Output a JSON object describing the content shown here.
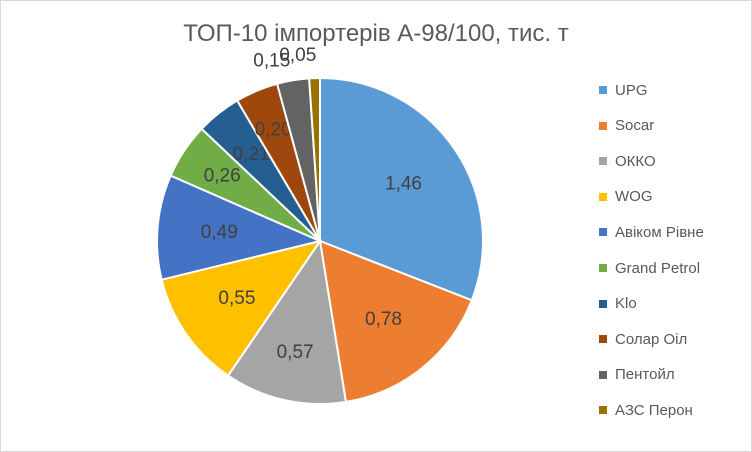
{
  "chart_data": {
    "type": "pie",
    "title": "ТОП-10 імпортерів А-98/100, тис. т",
    "categories": [
      "UPG",
      "Socar",
      "ОККО",
      "WOG",
      "Авіком Рівне",
      "Grand Petrol",
      "Klo",
      "Солар Оіл",
      "Пентойл",
      "АЗС Перон"
    ],
    "values": [
      1.46,
      0.78,
      0.57,
      0.55,
      0.49,
      0.26,
      0.21,
      0.2,
      0.15,
      0.05
    ],
    "data_labels": [
      "1,46",
      "0,78",
      "0,57",
      "0,55",
      "0,49",
      "0,26",
      "0,21",
      "0,20",
      "0,15",
      "0,05"
    ],
    "colors": [
      "#5b9bd5",
      "#ed7d31",
      "#a5a5a5",
      "#ffc000",
      "#4472c4",
      "#70ad47",
      "#255e91",
      "#9e480e",
      "#636363",
      "#997300"
    ],
    "legend_position": "right"
  }
}
